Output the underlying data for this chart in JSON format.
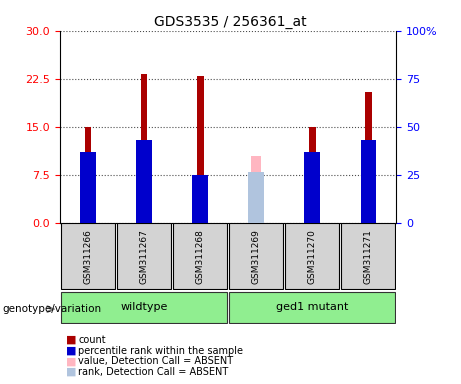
{
  "title": "GDS3535 / 256361_at",
  "samples": [
    "GSM311266",
    "GSM311267",
    "GSM311268",
    "GSM311269",
    "GSM311270",
    "GSM311271"
  ],
  "groups": [
    {
      "label": "wildtype",
      "samples": [
        "GSM311266",
        "GSM311267",
        "GSM311268"
      ],
      "color": "#90EE90"
    },
    {
      "label": "ged1 mutant",
      "samples": [
        "GSM311269",
        "GSM311270",
        "GSM311271"
      ],
      "color": "#90EE90"
    }
  ],
  "count_values": [
    15.0,
    23.2,
    23.0,
    null,
    15.0,
    20.5
  ],
  "percentile_values": [
    11.0,
    13.0,
    7.5,
    null,
    11.0,
    13.0
  ],
  "absent_value_values": [
    null,
    null,
    null,
    10.5,
    null,
    null
  ],
  "absent_rank_values": [
    null,
    null,
    null,
    8.0,
    null,
    null
  ],
  "ylim_left": [
    0,
    30
  ],
  "ylim_right": [
    0,
    100
  ],
  "yticks_left": [
    0,
    7.5,
    15,
    22.5,
    30
  ],
  "yticks_right": [
    0,
    25,
    50,
    75,
    100
  ],
  "bar_width": 0.35,
  "count_color": "#AA0000",
  "percentile_color": "#0000CC",
  "absent_value_color": "#FFB6C1",
  "absent_rank_color": "#B0C4DE",
  "legend_items": [
    {
      "label": "count",
      "color": "#AA0000"
    },
    {
      "label": "percentile rank within the sample",
      "color": "#0000CC"
    },
    {
      "label": "value, Detection Call = ABSENT",
      "color": "#FFB6C1"
    },
    {
      "label": "rank, Detection Call = ABSENT",
      "color": "#B0C4DE"
    }
  ],
  "group_label_prefix": "genotype/variation",
  "plot_bg": "#FFFFFF",
  "xlabel_area_bg": "#D3D3D3",
  "group_area_bg": "#90EE90"
}
